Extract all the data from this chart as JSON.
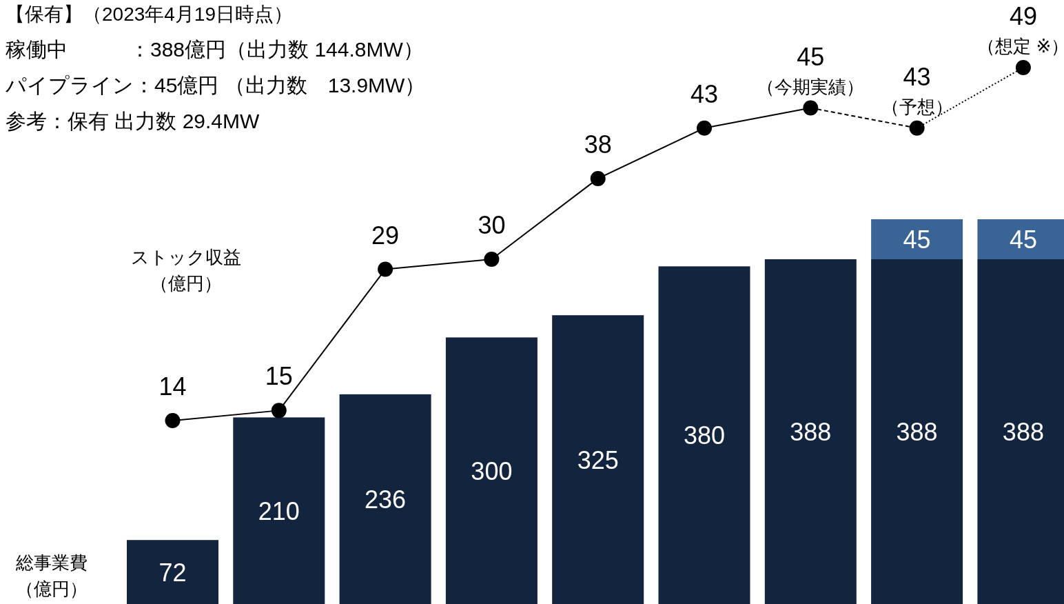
{
  "chart_data": [
    {
      "type": "bar",
      "stacked": true,
      "data_labels": true,
      "title": "【保有】（2023年4月19日時点）",
      "annotations": [
        "稼働中　　　：388億円（出力数 144.8MW）",
        "パイプライン：45億円 （出力数　13.9MW）",
        "参考：保有 出力数 29.4MW"
      ],
      "ylabel": "総事業費（億円）",
      "categories": [
        null,
        null,
        null,
        null,
        null,
        null,
        null,
        null,
        null
      ],
      "series": [
        {
          "color": "#13243f",
          "values": [
            72,
            210,
            236,
            300,
            325,
            380,
            388,
            388,
            388
          ]
        },
        {
          "color": "#3a6496",
          "values": [
            null,
            null,
            null,
            null,
            null,
            null,
            null,
            45,
            45
          ]
        }
      ]
    },
    {
      "type": "line",
      "ylabel": "ストック収益（億円）",
      "annotations": [
        "（今期実績）",
        "（予想）",
        "（想定 ※）"
      ],
      "categories": [
        null,
        null,
        null,
        null,
        null,
        null,
        null,
        null,
        null
      ],
      "series": [
        {
          "color": "#000000",
          "marker": "circle",
          "line_style": "solid",
          "values": [
            14,
            15,
            29,
            30,
            38,
            43,
            45,
            null,
            null
          ],
          "value_labels": [
            "14",
            "15",
            "29",
            "30",
            "38",
            "43",
            "45",
            null,
            null
          ]
        },
        {
          "color": "#000000",
          "line_style": "dashed",
          "values": [
            null,
            null,
            null,
            null,
            null,
            null,
            45,
            43,
            null
          ]
        },
        {
          "color": "#000000",
          "marker": "circle",
          "line_style": "dotted",
          "values": [
            null,
            null,
            null,
            null,
            null,
            null,
            null,
            43,
            49
          ],
          "value_labels": [
            null,
            null,
            null,
            null,
            null,
            null,
            null,
            "43",
            "49"
          ]
        }
      ]
    }
  ]
}
